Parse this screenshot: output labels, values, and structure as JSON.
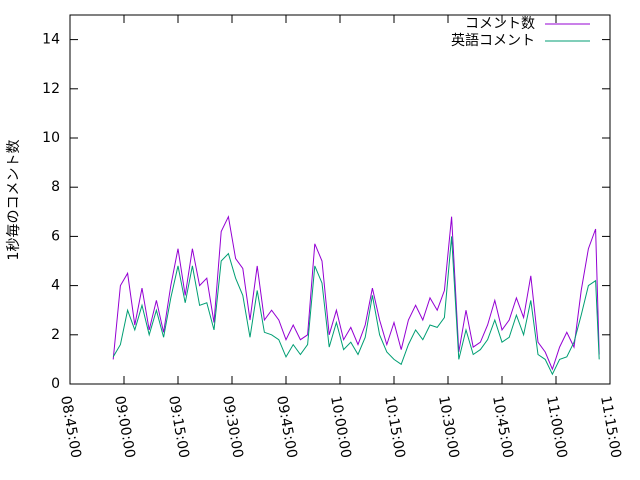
{
  "chart_data": {
    "type": "line",
    "y_label": "1秒毎のコメント数",
    "x": [
      "08:57:00",
      "08:59:00",
      "09:01:00",
      "09:03:00",
      "09:05:00",
      "09:07:00",
      "09:09:00",
      "09:11:00",
      "09:13:00",
      "09:15:00",
      "09:17:00",
      "09:19:00",
      "09:21:00",
      "09:23:00",
      "09:25:00",
      "09:27:00",
      "09:29:00",
      "09:31:00",
      "09:33:00",
      "09:35:00",
      "09:37:00",
      "09:39:00",
      "09:41:00",
      "09:43:00",
      "09:45:00",
      "09:47:00",
      "09:49:00",
      "09:51:00",
      "09:53:00",
      "09:55:00",
      "09:57:00",
      "09:59:00",
      "10:01:00",
      "10:03:00",
      "10:05:00",
      "10:07:00",
      "10:09:00",
      "10:11:00",
      "10:13:00",
      "10:15:00",
      "10:17:00",
      "10:19:00",
      "10:21:00",
      "10:23:00",
      "10:25:00",
      "10:27:00",
      "10:29:00",
      "10:31:00",
      "10:33:00",
      "10:35:00",
      "10:37:00",
      "10:39:00",
      "10:41:00",
      "10:43:00",
      "10:45:00",
      "10:47:00",
      "10:49:00",
      "10:51:00",
      "10:53:00",
      "10:55:00",
      "10:57:00",
      "10:59:00",
      "11:01:00",
      "11:03:00",
      "11:05:00",
      "11:07:00",
      "11:09:00",
      "11:11:00",
      "11:12:00"
    ],
    "series": [
      {
        "name": "コメント数",
        "color": "#9400d3",
        "values": [
          1.0,
          4.0,
          4.5,
          2.4,
          3.9,
          2.2,
          3.4,
          2.1,
          4.0,
          5.5,
          3.6,
          5.5,
          4.0,
          4.3,
          2.5,
          6.2,
          6.8,
          5.1,
          4.7,
          2.6,
          4.8,
          2.6,
          3.0,
          2.6,
          1.8,
          2.4,
          1.8,
          2.0,
          5.7,
          5.0,
          2.0,
          3.0,
          1.8,
          2.3,
          1.6,
          2.4,
          3.9,
          2.6,
          1.6,
          2.5,
          1.4,
          2.6,
          3.2,
          2.6,
          3.5,
          3.0,
          3.8,
          6.8,
          1.3,
          3.0,
          1.5,
          1.7,
          2.4,
          3.4,
          2.2,
          2.6,
          3.5,
          2.7,
          4.4,
          1.7,
          1.3,
          0.6,
          1.5,
          2.1,
          1.5,
          3.8,
          5.5,
          6.3,
          1.2
        ]
      },
      {
        "name": "英語コメント",
        "color": "#009e73",
        "values": [
          1.1,
          1.6,
          3.0,
          2.2,
          3.2,
          2.0,
          3.0,
          1.9,
          3.5,
          4.8,
          3.3,
          4.8,
          3.2,
          3.3,
          2.2,
          5.0,
          5.3,
          4.3,
          3.6,
          1.9,
          3.8,
          2.1,
          2.0,
          1.8,
          1.1,
          1.6,
          1.2,
          1.6,
          4.8,
          4.1,
          1.5,
          2.5,
          1.4,
          1.7,
          1.2,
          1.9,
          3.6,
          2.0,
          1.3,
          1.0,
          0.8,
          1.6,
          2.2,
          1.8,
          2.4,
          2.3,
          2.7,
          6.0,
          1.0,
          2.2,
          1.2,
          1.4,
          1.8,
          2.6,
          1.7,
          1.9,
          2.8,
          2.0,
          3.4,
          1.2,
          1.0,
          0.4,
          1.0,
          1.1,
          1.7,
          2.8,
          4.0,
          4.2,
          1.0
        ]
      }
    ],
    "xlim": [
      "08:45:00",
      "11:15:00"
    ],
    "xticks": [
      "08:45:00",
      "09:00:00",
      "09:15:00",
      "09:30:00",
      "09:45:00",
      "10:00:00",
      "10:15:00",
      "10:30:00",
      "10:45:00",
      "11:00:00",
      "11:15:00"
    ],
    "ylim": [
      0,
      15
    ],
    "yticks": [
      0,
      2,
      4,
      6,
      8,
      10,
      12,
      14
    ],
    "grid": false,
    "legend": "top-right"
  }
}
